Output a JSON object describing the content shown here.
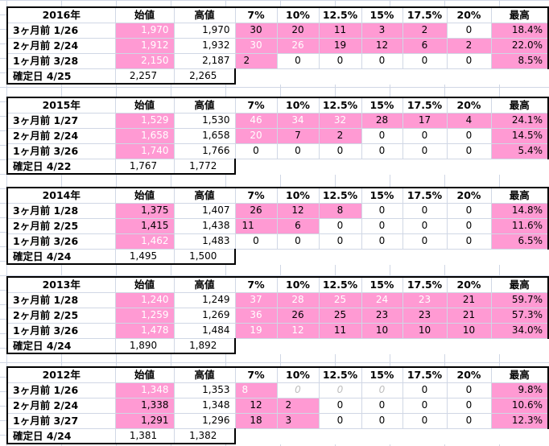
{
  "headers": [
    "始値",
    "高値",
    "7%",
    "10%",
    "12.5%",
    "15%",
    "17.5%",
    "20%",
    "最高"
  ],
  "colors": {
    "highlight": "#ff9ad3",
    "grid": "#d0d7e5"
  },
  "sections": [
    {
      "year": "2016年",
      "rows": [
        {
          "label": "3ヶ月前  1/26",
          "start": "1,970",
          "high": "1,970",
          "p7": "30",
          "p10": "20",
          "p125": "11",
          "p15": "3",
          "p175": "2",
          "p20": "0",
          "max": "18.4%"
        },
        {
          "label": "2ヶ月前  2/24",
          "start": "1,912",
          "high": "1,932",
          "p7": "30",
          "p10": "26",
          "p125": "19",
          "p15": "12",
          "p175": "6",
          "p20": "2",
          "max": "22.0%"
        },
        {
          "label": "1ヶ月前  3/28",
          "start": "2,150",
          "high": "2,187",
          "p7": "2",
          "p10": "0",
          "p125": "0",
          "p15": "0",
          "p175": "0",
          "p20": "0",
          "max": "8.5%"
        },
        {
          "label": "確定日  4/25",
          "start": "2,257",
          "high": "2,265"
        }
      ]
    },
    {
      "year": "2015年",
      "rows": [
        {
          "label": "3ヶ月前  1/27",
          "start": "1,529",
          "high": "1,530",
          "p7": "46",
          "p10": "34",
          "p125": "32",
          "p15": "28",
          "p175": "17",
          "p20": "4",
          "max": "24.1%"
        },
        {
          "label": "2ヶ月前  2/24",
          "start": "1,658",
          "high": "1,658",
          "p7": "20",
          "p10": "7",
          "p125": "2",
          "p15": "0",
          "p175": "0",
          "p20": "0",
          "max": "14.5%"
        },
        {
          "label": "1ヶ月前  3/26",
          "start": "1,740",
          "high": "1,766",
          "p7": "0",
          "p10": "0",
          "p125": "0",
          "p15": "0",
          "p175": "0",
          "p20": "0",
          "max": "5.4%"
        },
        {
          "label": "確定日  4/22",
          "start": "1,767",
          "high": "1,772"
        }
      ]
    },
    {
      "year": "2014年",
      "rows": [
        {
          "label": "3ヶ月前  1/28",
          "start": "1,375",
          "high": "1,407",
          "p7": "26",
          "p10": "12",
          "p125": "8",
          "p15": "0",
          "p175": "0",
          "p20": "0",
          "max": "14.8%"
        },
        {
          "label": "2ヶ月前  2/25",
          "start": "1,415",
          "high": "1,438",
          "p7": "11",
          "p10": "6",
          "p125": "0",
          "p15": "0",
          "p175": "0",
          "p20": "0",
          "max": "11.6%"
        },
        {
          "label": "1ヶ月前  3/26",
          "start": "1,462",
          "high": "1,483",
          "p7": "0",
          "p10": "0",
          "p125": "0",
          "p15": "0",
          "p175": "0",
          "p20": "0",
          "max": "6.5%"
        },
        {
          "label": "確定日  4/24",
          "start": "1,495",
          "high": "1,500"
        }
      ]
    },
    {
      "year": "2013年",
      "rows": [
        {
          "label": "3ヶ月前  1/28",
          "start": "1,240",
          "high": "1,249",
          "p7": "37",
          "p10": "28",
          "p125": "25",
          "p15": "24",
          "p175": "23",
          "p20": "21",
          "max": "59.7%"
        },
        {
          "label": "2ヶ月前  2/25",
          "start": "1,259",
          "high": "1,269",
          "p7": "36",
          "p10": "26",
          "p125": "25",
          "p15": "23",
          "p175": "23",
          "p20": "21",
          "max": "57.3%"
        },
        {
          "label": "1ヶ月前  3/26",
          "start": "1,478",
          "high": "1,484",
          "p7": "19",
          "p10": "12",
          "p125": "11",
          "p15": "10",
          "p175": "10",
          "p20": "10",
          "max": "34.0%"
        },
        {
          "label": "確定日  4/24",
          "start": "1,890",
          "high": "1,892"
        }
      ]
    },
    {
      "year": "2012年",
      "rows": [
        {
          "label": "3ヶ月前  1/26",
          "start": "1,348",
          "high": "1,353",
          "p7": "8",
          "p10": "0",
          "p125": "0",
          "p15": "0",
          "p175": "0",
          "p20": "0",
          "max": "9.8%"
        },
        {
          "label": "2ヶ月前  2/24",
          "start": "1,338",
          "high": "1,348",
          "p7": "12",
          "p10": "2",
          "p125": "0",
          "p15": "0",
          "p175": "0",
          "p20": "0",
          "max": "10.6%"
        },
        {
          "label": "1ヶ月前  3/27",
          "start": "1,291",
          "high": "1,296",
          "p7": "18",
          "p10": "3",
          "p125": "0",
          "p15": "0",
          "p175": "0",
          "p20": "0",
          "max": "12.3%"
        },
        {
          "label": "確定日  4/24",
          "start": "1,381",
          "high": "1,382"
        }
      ]
    }
  ]
}
